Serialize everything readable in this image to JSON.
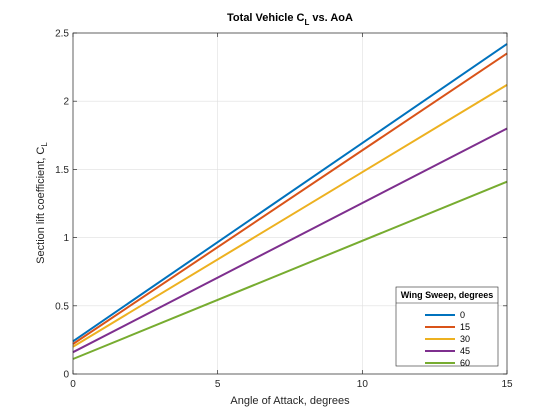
{
  "chart_data": {
    "type": "line",
    "title_main": "Total Vehicle C",
    "title_sub": "L",
    "title_tail": " vs. AoA",
    "xlabel": "Angle of Attack, degrees",
    "ylabel_main": "Section lift coefficient, C",
    "ylabel_sub": "L",
    "xlim": [
      0,
      15
    ],
    "ylim": [
      0,
      2.5
    ],
    "xticks": [
      0,
      5,
      10,
      15
    ],
    "xtick_labels": [
      "0",
      "5",
      "10",
      "15"
    ],
    "yticks": [
      0,
      0.5,
      1,
      1.5,
      2,
      2.5
    ],
    "ytick_labels": [
      "0",
      "0.5",
      "1",
      "1.5",
      "2",
      "2.5"
    ],
    "grid": true,
    "legend": {
      "title": "Wing Sweep, degrees",
      "placement": "bottom-right"
    },
    "x": [
      0,
      15
    ],
    "series": [
      {
        "name": "0",
        "color": "#0072BD",
        "values": [
          0.24,
          2.42
        ]
      },
      {
        "name": "15",
        "color": "#D95319",
        "values": [
          0.22,
          2.35
        ]
      },
      {
        "name": "30",
        "color": "#EDB120",
        "values": [
          0.2,
          2.12
        ]
      },
      {
        "name": "45",
        "color": "#7E2F8E",
        "values": [
          0.16,
          1.8
        ]
      },
      {
        "name": "60",
        "color": "#77AC30",
        "values": [
          0.11,
          1.41
        ]
      }
    ]
  }
}
